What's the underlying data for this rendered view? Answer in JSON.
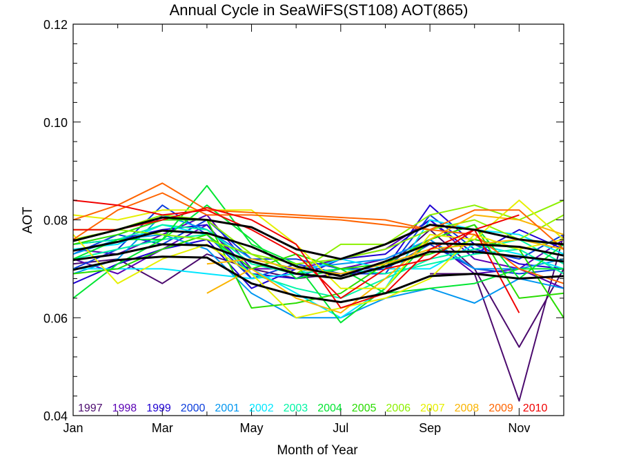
{
  "chart_data": {
    "type": "line",
    "title": "Annual Cycle in SeaWiFS(ST108) AOT(865)",
    "xlabel": "Month of Year",
    "ylabel": "AOT",
    "xlim": [
      1,
      12
    ],
    "ylim": [
      0.04,
      0.12
    ],
    "yticks": [
      {
        "value": 0.04,
        "label": "0.04"
      },
      {
        "value": 0.06,
        "label": "0.06"
      },
      {
        "value": 0.08,
        "label": "0.08"
      },
      {
        "value": 0.1,
        "label": "0.10"
      },
      {
        "value": 0.12,
        "label": "0.12"
      }
    ],
    "xticks": [
      {
        "value": 1,
        "label": "Jan"
      },
      {
        "value": 3,
        "label": "Mar"
      },
      {
        "value": 5,
        "label": "May"
      },
      {
        "value": 7,
        "label": "Jul"
      },
      {
        "value": 9,
        "label": "Sep"
      },
      {
        "value": 11,
        "label": "Nov"
      }
    ],
    "legend_placement": "bottom inside plot",
    "series": [
      {
        "name": "1997",
        "color": "#4b0a6e",
        "values": [
          null,
          null,
          null,
          null,
          null,
          null,
          null,
          null,
          0.069,
          0.069,
          0.043,
          0.077
        ]
      },
      {
        "name": "1997",
        "color": "#4b0a6e",
        "values": [
          0.071,
          0.072,
          0.067,
          0.073,
          0.07,
          0.068,
          0.069,
          0.07,
          0.078,
          0.07,
          0.054,
          0.07
        ]
      },
      {
        "name": "1998",
        "color": "#5a00b4",
        "values": [
          0.072,
          0.069,
          0.074,
          0.079,
          0.068,
          0.069,
          0.07,
          0.072,
          0.076,
          0.069,
          0.07,
          0.066
        ]
      },
      {
        "name": "1998",
        "color": "#5a00b4",
        "values": [
          0.074,
          0.073,
          0.077,
          0.081,
          0.07,
          0.07,
          0.072,
          0.074,
          0.08,
          0.072,
          0.07,
          0.076
        ]
      },
      {
        "name": "1999",
        "color": "#1e00d2",
        "values": [
          0.067,
          0.071,
          0.074,
          0.076,
          0.066,
          0.07,
          0.069,
          0.07,
          0.083,
          0.075,
          0.071,
          0.07
        ]
      },
      {
        "name": "1999",
        "color": "#1e00d2",
        "values": [
          0.075,
          0.076,
          0.078,
          0.079,
          0.069,
          0.068,
          0.072,
          0.073,
          0.08,
          0.073,
          0.078,
          0.074
        ]
      },
      {
        "name": "2000",
        "color": "#0a3cdc",
        "values": [
          0.07,
          0.074,
          0.083,
          0.077,
          0.068,
          0.071,
          0.069,
          0.069,
          0.081,
          0.074,
          0.072,
          0.077
        ]
      },
      {
        "name": "2000",
        "color": "#0a3cdc",
        "values": [
          0.073,
          0.077,
          0.075,
          0.08,
          0.072,
          0.072,
          0.07,
          0.07,
          0.075,
          0.07,
          0.069,
          0.07
        ]
      },
      {
        "name": "2001",
        "color": "#0096f0",
        "values": [
          0.069,
          0.072,
          0.081,
          0.078,
          0.072,
          0.07,
          0.071,
          0.072,
          0.076,
          0.07,
          0.07,
          0.072
        ]
      },
      {
        "name": "2001",
        "color": "#0096f0",
        "values": [
          0.073,
          0.076,
          0.077,
          0.074,
          0.065,
          0.06,
          0.06,
          0.064,
          0.066,
          0.063,
          0.068,
          0.066
        ]
      },
      {
        "name": "2002",
        "color": "#00e6ff",
        "values": [
          0.074,
          0.075,
          0.079,
          0.077,
          0.07,
          0.065,
          0.06,
          0.066,
          0.08,
          0.078,
          0.077,
          0.073
        ]
      },
      {
        "name": "2002",
        "color": "#00e6ff",
        "values": [
          0.07,
          0.07,
          0.07,
          0.069,
          0.068,
          0.069,
          0.072,
          0.07,
          0.07,
          0.075,
          0.073,
          0.07
        ]
      },
      {
        "name": "2003",
        "color": "#00f5a5",
        "values": [
          0.072,
          0.074,
          0.076,
          0.077,
          0.069,
          0.066,
          0.064,
          0.068,
          0.072,
          0.074,
          0.076,
          0.071
        ]
      },
      {
        "name": "2003",
        "color": "#00f5a5",
        "values": [
          0.075,
          0.076,
          0.079,
          0.078,
          0.071,
          0.069,
          0.07,
          0.069,
          0.071,
          0.073,
          0.074,
          0.069
        ]
      },
      {
        "name": "2004",
        "color": "#00e632",
        "values": [
          0.064,
          0.071,
          0.076,
          0.087,
          0.075,
          0.071,
          0.059,
          0.066,
          0.076,
          0.079,
          0.068,
          0.075
        ]
      },
      {
        "name": "2004",
        "color": "#00e632",
        "values": [
          0.072,
          0.076,
          0.076,
          0.083,
          0.076,
          0.068,
          0.07,
          0.065,
          0.066,
          0.067,
          0.07,
          0.07
        ]
      },
      {
        "name": "2005",
        "color": "#28dc00",
        "values": [
          0.075,
          0.077,
          0.08,
          0.08,
          0.062,
          0.063,
          0.065,
          0.071,
          0.076,
          0.079,
          0.064,
          0.065
        ]
      },
      {
        "name": "2005",
        "color": "#28dc00",
        "values": [
          0.069,
          0.07,
          0.074,
          0.077,
          0.07,
          0.073,
          0.07,
          0.071,
          0.073,
          0.076,
          0.074,
          0.06
        ]
      },
      {
        "name": "2006",
        "color": "#8cf000",
        "values": [
          0.078,
          0.078,
          0.081,
          0.08,
          0.073,
          0.069,
          0.075,
          0.075,
          0.081,
          0.083,
          0.08,
          0.084
        ]
      },
      {
        "name": "2006",
        "color": "#8cf000",
        "values": [
          0.076,
          0.078,
          0.077,
          0.076,
          0.073,
          0.071,
          0.072,
          0.074,
          0.078,
          0.08,
          0.076,
          0.081
        ]
      },
      {
        "name": "2007",
        "color": "#e6f000",
        "values": [
          0.081,
          0.08,
          0.082,
          0.082,
          0.082,
          0.075,
          0.066,
          0.066,
          0.077,
          0.076,
          0.084,
          0.076
        ]
      },
      {
        "name": "2007",
        "color": "#e6f000",
        "values": [
          0.077,
          0.067,
          0.072,
          0.075,
          0.069,
          0.06,
          0.062,
          0.064,
          0.068,
          0.077,
          0.074,
          0.076
        ]
      },
      {
        "name": "2008",
        "color": "#fab400",
        "values": [
          null,
          null,
          null,
          0.065,
          0.07,
          0.064,
          0.061,
          0.068,
          0.076,
          0.081,
          0.08,
          0.077
        ]
      },
      {
        "name": "2008",
        "color": "#fab400",
        "values": [
          null,
          null,
          null,
          0.071,
          0.072,
          0.07,
          0.069,
          0.071,
          0.074,
          0.075,
          0.076,
          0.074
        ]
      },
      {
        "name": "2009",
        "color": "#ff6400",
        "values": [
          0.08,
          0.083,
          0.0875,
          0.082,
          0.0815,
          0.081,
          0.0805,
          0.08,
          0.078,
          0.082,
          0.082,
          0.074
        ]
      },
      {
        "name": "2009",
        "color": "#ff6400",
        "values": [
          0.076,
          0.082,
          0.0855,
          0.081,
          0.081,
          0.0805,
          0.08,
          0.079,
          0.078,
          0.077,
          0.07,
          0.067
        ]
      },
      {
        "name": "2010",
        "color": "#f00000",
        "values": [
          0.084,
          0.083,
          0.081,
          0.082,
          0.078,
          0.073,
          0.064,
          0.07,
          0.072,
          0.078,
          0.061,
          null
        ]
      },
      {
        "name": "2010",
        "color": "#f00000",
        "values": [
          0.078,
          0.078,
          0.08,
          0.0825,
          0.08,
          0.075,
          0.062,
          0.065,
          0.074,
          0.078,
          0.081,
          null
        ]
      },
      {
        "name": "",
        "color": "#000000",
        "thick": true,
        "values": [
          0.0757,
          0.078,
          0.0805,
          0.08,
          0.0785,
          0.074,
          0.072,
          0.075,
          0.079,
          0.078,
          0.076,
          0.075
        ]
      },
      {
        "name": "",
        "color": "#000000",
        "thick": true,
        "values": [
          0.0737,
          0.0755,
          0.0778,
          0.0773,
          0.0745,
          0.0705,
          0.0685,
          0.0715,
          0.0752,
          0.075,
          0.0745,
          0.0727
        ]
      },
      {
        "name": "",
        "color": "#000000",
        "thick": true,
        "values": [
          0.0718,
          0.073,
          0.075,
          0.0748,
          0.0715,
          0.069,
          0.068,
          0.0705,
          0.0735,
          0.0735,
          0.0725,
          0.0715
        ]
      },
      {
        "name": "",
        "color": "#000000",
        "thick": true,
        "values": [
          0.0698,
          0.0718,
          0.0725,
          0.0723,
          0.067,
          0.0645,
          0.0632,
          0.065,
          0.0685,
          0.069,
          0.068,
          0.0685
        ]
      }
    ],
    "legend": [
      {
        "label": "1997",
        "color": "#4b0a6e"
      },
      {
        "label": "1998",
        "color": "#5a00b4"
      },
      {
        "label": "1999",
        "color": "#1e00d2"
      },
      {
        "label": "2000",
        "color": "#0a3cdc"
      },
      {
        "label": "2001",
        "color": "#0096f0"
      },
      {
        "label": "2002",
        "color": "#00e6ff"
      },
      {
        "label": "2003",
        "color": "#00f5a5"
      },
      {
        "label": "2004",
        "color": "#00e632"
      },
      {
        "label": "2005",
        "color": "#28dc00"
      },
      {
        "label": "2006",
        "color": "#8cf000"
      },
      {
        "label": "2007",
        "color": "#e6f000"
      },
      {
        "label": "2008",
        "color": "#fab400"
      },
      {
        "label": "2009",
        "color": "#ff6400"
      },
      {
        "label": "2010",
        "color": "#f00000"
      }
    ]
  }
}
